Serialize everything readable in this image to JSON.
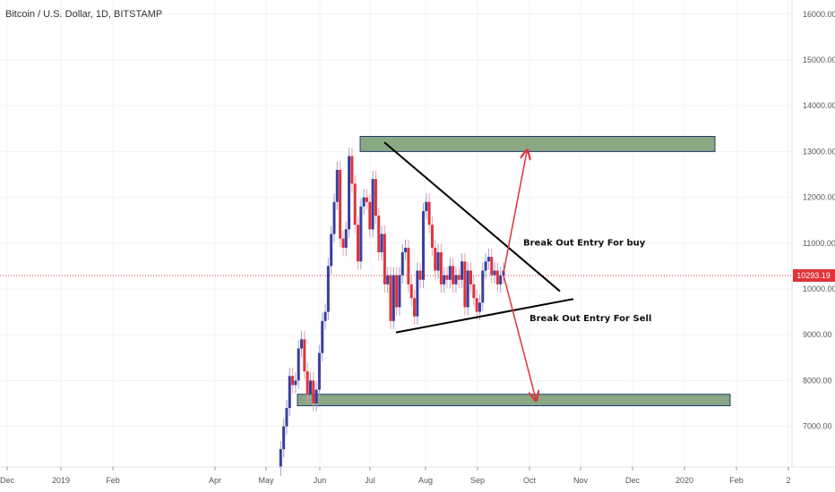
{
  "chart_data": {
    "type": "candlestick",
    "title": "Bitcoin / U.S. Dollar, 1D, BITSTAMP",
    "x_tick_labels": [
      "Dec",
      "2019",
      "Feb",
      "Apr",
      "May",
      "Jun",
      "Jul",
      "Aug",
      "Sep",
      "Oct",
      "Nov",
      "Dec",
      "2020",
      "Feb",
      "2"
    ],
    "y_tick_labels": [
      "7000.00",
      "8000.00",
      "9000.00",
      "10000.00",
      "11000.00",
      "12000.00",
      "13000.00",
      "14000.00",
      "15000.00",
      "16000.00"
    ],
    "y_ticks": [
      7000,
      8000,
      9000,
      10000,
      11000,
      12000,
      13000,
      14000,
      15000,
      16000
    ],
    "ylim": [
      5950,
      16350
    ],
    "current_price": "10293.19",
    "current_price_value": 10293.19,
    "grid": true,
    "colors": {
      "up": "#3a3e9e",
      "down": "#e0333a",
      "zone_fill": "#8aa884",
      "zone_border": "#1f3d6e",
      "price_line": "#e0333a",
      "arrow": "#e0333a",
      "trend": "#000000"
    },
    "price_series": {
      "start_month": "2019-05",
      "end_month": "2019-09",
      "close_path": [
        6100,
        6500,
        7000,
        7400,
        8100,
        7900,
        8000,
        8700,
        8900,
        8200,
        7700,
        8000,
        7500,
        7800,
        8600,
        9300,
        9500,
        10500,
        11200,
        11900,
        12600,
        11100,
        10900,
        11300,
        12900,
        12300,
        11400,
        10600,
        11800,
        12000,
        11900,
        11300,
        12400,
        11600,
        10800,
        11200,
        10100,
        10300,
        9300,
        10300,
        9600,
        10300,
        10800,
        10900,
        10100,
        9800,
        9400,
        10400,
        10200,
        11700,
        11900,
        11400,
        10900,
        10400,
        10800,
        10100,
        10300,
        10200,
        10500,
        10100,
        10300,
        10200,
        10600,
        9600,
        10400,
        10100,
        9800,
        9500,
        9700,
        10400,
        10600,
        10700,
        10300,
        10400,
        10100,
        10300,
        10400
      ]
    },
    "zones": [
      {
        "name": "resistance",
        "low": 13000,
        "high": 13330
      },
      {
        "name": "support",
        "low": 7450,
        "high": 7700
      }
    ],
    "annotations": [
      {
        "text": "Break Out Entry For buy",
        "y": 10950
      },
      {
        "text": "Break Out Entry For Sell",
        "y": 9300
      }
    ]
  }
}
